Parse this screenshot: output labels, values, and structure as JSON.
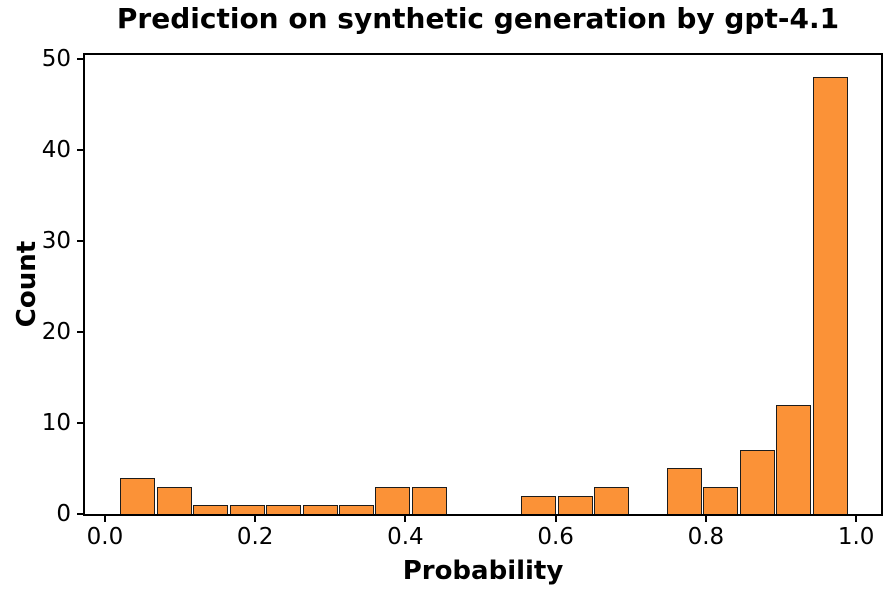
{
  "chart_data": {
    "type": "bar",
    "subtype": "histogram",
    "title": "Prediction on synthetic generation by gpt-4.1",
    "xlabel": "Probability",
    "ylabel": "Count",
    "bins": {
      "start": 0.02,
      "width": 0.0485,
      "count": 20
    },
    "bin_edges": [
      0.02,
      0.0685,
      0.117,
      0.1655,
      0.214,
      0.2625,
      0.311,
      0.3595,
      0.408,
      0.4565,
      0.505,
      0.5535,
      0.602,
      0.6505,
      0.699,
      0.7475,
      0.796,
      0.8445,
      0.893,
      0.9415,
      0.99
    ],
    "counts": [
      4,
      3,
      1,
      1,
      1,
      1,
      1,
      3,
      3,
      0,
      0,
      2,
      2,
      3,
      0,
      5,
      3,
      7,
      12,
      48
    ],
    "x_ticks": [
      {
        "value": 0.0,
        "label": "0.0"
      },
      {
        "value": 0.2,
        "label": "0.2"
      },
      {
        "value": 0.4,
        "label": "0.4"
      },
      {
        "value": 0.6,
        "label": "0.6"
      },
      {
        "value": 0.8,
        "label": "0.8"
      },
      {
        "value": 1.0,
        "label": "1.0"
      }
    ],
    "y_ticks": [
      {
        "value": 0,
        "label": "0"
      },
      {
        "value": 10,
        "label": "10"
      },
      {
        "value": 20,
        "label": "20"
      },
      {
        "value": 30,
        "label": "30"
      },
      {
        "value": 40,
        "label": "40"
      },
      {
        "value": 50,
        "label": "50"
      }
    ],
    "xlim": [
      -0.0265,
      1.0331
    ],
    "ylim": [
      0,
      50.4
    ],
    "grid": false,
    "legend": null,
    "colors": {
      "bar_fill": "#FB9237",
      "bar_edge": "#1C1C1C",
      "spine": "#000000",
      "text": "#000000",
      "background": "#ffffff"
    }
  }
}
